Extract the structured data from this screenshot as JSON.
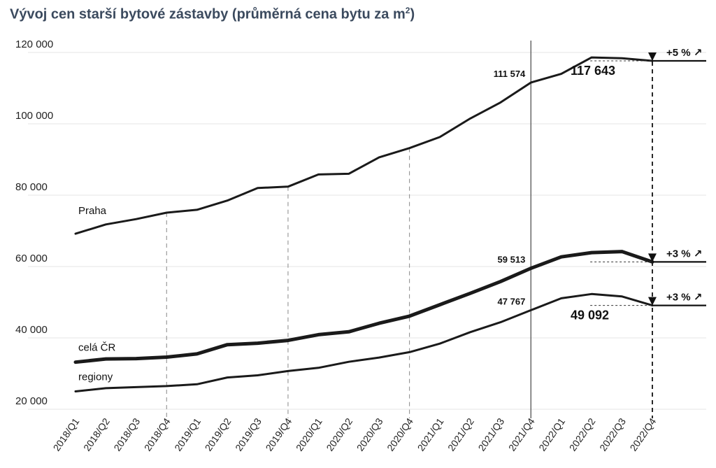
{
  "chart_data": {
    "type": "line",
    "title": "Vývoj cen starší bytové zástavby (průměrná cena bytu za m",
    "title_sup": "2",
    "x": [
      "2018/Q1",
      "2018/Q2",
      "2018/Q3",
      "2018/Q4",
      "2019/Q1",
      "2019/Q2",
      "2019/Q3",
      "2019/Q4",
      "2020/Q1",
      "2020/Q2",
      "2020/Q3",
      "2020/Q4",
      "2021/Q1",
      "2021/Q2",
      "2021/Q3",
      "2021/Q4",
      "2022/Q1",
      "2022/Q2",
      "2022/Q3",
      "2022/Q4"
    ],
    "yticks": [
      20000,
      40000,
      60000,
      80000,
      100000,
      120000
    ],
    "ytick_labels": [
      "20 000",
      "40 000",
      "60 000",
      "80 000",
      "100 000",
      "120 000"
    ],
    "ylim": [
      20000,
      121000
    ],
    "grid": true,
    "series": [
      {
        "name": "Praha",
        "values": [
          69200,
          71800,
          73300,
          75100,
          75900,
          78500,
          82000,
          82400,
          85800,
          86000,
          90600,
          93200,
          96300,
          101500,
          106000,
          111574,
          114000,
          118600,
          118400,
          117643
        ],
        "stroke_width": 3
      },
      {
        "name": "celá ČR",
        "values": [
          33200,
          34100,
          34200,
          34600,
          35500,
          38100,
          38500,
          39300,
          40900,
          41700,
          44100,
          46100,
          49300,
          52500,
          55800,
          59513,
          62700,
          63900,
          64200,
          61300
        ],
        "stroke_width": 5
      },
      {
        "name": "regiony",
        "values": [
          25000,
          25900,
          26200,
          26500,
          27000,
          28900,
          29500,
          30700,
          31600,
          33300,
          34500,
          36000,
          38400,
          41600,
          44400,
          47767,
          51100,
          52300,
          51600,
          49092
        ],
        "stroke_width": 3
      }
    ],
    "annotations": {
      "labels_2021q4": [
        "111 574",
        "59 513",
        "47 767"
      ],
      "labels_2022q4": [
        "117 643",
        "49 092"
      ],
      "pct_changes": [
        "+5 %",
        "+3 %",
        "+3 %"
      ],
      "arrow_glyph": "↗"
    },
    "dashed_guides_at": [
      "2018/Q4",
      "2019/Q4",
      "2020/Q4",
      "2022/Q4"
    ],
    "solid_guide_at": "2021/Q4"
  }
}
